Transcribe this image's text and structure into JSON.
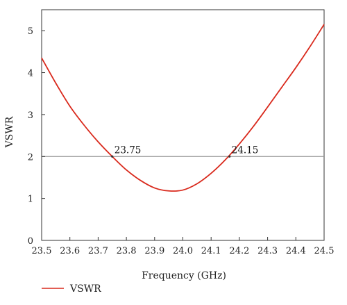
{
  "chart_data": {
    "type": "line",
    "xlabel": "Frequency (GHz)",
    "ylabel": "VSWR",
    "xlim": [
      23.5,
      24.5
    ],
    "ylim": [
      0,
      5.5
    ],
    "x_ticks": [
      "23.5",
      "23.6",
      "23.7",
      "23.8",
      "23.9",
      "24.0",
      "24.1",
      "24.2",
      "24.3",
      "24.4",
      "24.5"
    ],
    "y_ticks": [
      "0",
      "1",
      "2",
      "3",
      "4",
      "5"
    ],
    "grid": false,
    "legend_position": "bottom-left",
    "series": [
      {
        "name": "VSWR",
        "color": "#d9291c",
        "x": [
          23.5,
          23.55,
          23.6,
          23.65,
          23.7,
          23.75,
          23.8,
          23.85,
          23.9,
          23.95,
          24.0,
          24.05,
          24.1,
          24.15,
          24.2,
          24.25,
          24.3,
          24.35,
          24.4,
          24.45,
          24.5
        ],
        "y": [
          4.35,
          3.75,
          3.2,
          2.75,
          2.35,
          2.0,
          1.68,
          1.43,
          1.25,
          1.18,
          1.2,
          1.35,
          1.6,
          1.92,
          2.3,
          2.72,
          3.18,
          3.65,
          4.12,
          4.62,
          5.15
        ]
      }
    ],
    "reference_line": {
      "y": 2,
      "color": "#999999"
    },
    "annotations": [
      {
        "text": "23.75",
        "x": 23.75,
        "y": 2.0
      },
      {
        "text": "24.15",
        "x": 24.165,
        "y": 2.0
      }
    ]
  }
}
